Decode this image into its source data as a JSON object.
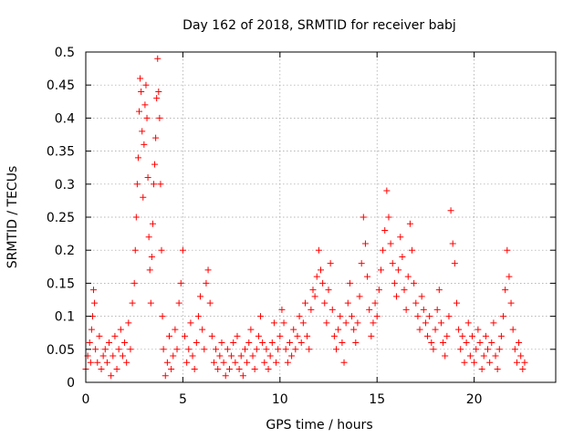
{
  "chart_data": {
    "type": "scatter",
    "title": "Day 162 of 2018, SRMTID for receiver babj",
    "xlabel": "GPS time / hours",
    "ylabel": "SRMTID / TECUs",
    "xlim": [
      0,
      24.2
    ],
    "ylim": [
      0,
      0.5
    ],
    "xticks": [
      0,
      5,
      10,
      15,
      20
    ],
    "xtick_labels": [
      "0",
      "5",
      "10",
      "15",
      "20"
    ],
    "yticks": [
      0,
      0.05,
      0.1,
      0.15,
      0.2,
      0.25,
      0.3,
      0.35,
      0.4,
      0.45,
      0.5
    ],
    "ytick_labels": [
      "0",
      "0.05",
      "0.1",
      "0.15",
      "0.2",
      "0.25",
      "0.3",
      "0.35",
      "0.4",
      "0.45",
      "0.5"
    ],
    "grid": true,
    "marker": "+",
    "marker_color": "#ff0000",
    "series": [
      {
        "name": "SRMTID",
        "points": [
          [
            0.0,
            0.02
          ],
          [
            0.1,
            0.04
          ],
          [
            0.2,
            0.06
          ],
          [
            0.25,
            0.03
          ],
          [
            0.3,
            0.08
          ],
          [
            0.35,
            0.1
          ],
          [
            0.4,
            0.14
          ],
          [
            0.45,
            0.12
          ],
          [
            0.5,
            0.05
          ],
          [
            0.6,
            0.03
          ],
          [
            0.7,
            0.07
          ],
          [
            0.8,
            0.02
          ],
          [
            0.9,
            0.04
          ],
          [
            1.0,
            0.05
          ],
          [
            1.1,
            0.03
          ],
          [
            1.2,
            0.06
          ],
          [
            1.3,
            0.01
          ],
          [
            1.4,
            0.04
          ],
          [
            1.5,
            0.07
          ],
          [
            1.6,
            0.02
          ],
          [
            1.7,
            0.05
          ],
          [
            1.8,
            0.08
          ],
          [
            1.9,
            0.04
          ],
          [
            2.0,
            0.06
          ],
          [
            2.1,
            0.03
          ],
          [
            2.2,
            0.09
          ],
          [
            2.3,
            0.05
          ],
          [
            2.4,
            0.12
          ],
          [
            2.5,
            0.15
          ],
          [
            2.55,
            0.2
          ],
          [
            2.6,
            0.25
          ],
          [
            2.65,
            0.3
          ],
          [
            2.7,
            0.34
          ],
          [
            2.75,
            0.41
          ],
          [
            2.8,
            0.46
          ],
          [
            2.85,
            0.44
          ],
          [
            2.9,
            0.38
          ],
          [
            2.95,
            0.28
          ],
          [
            3.0,
            0.36
          ],
          [
            3.05,
            0.42
          ],
          [
            3.1,
            0.45
          ],
          [
            3.15,
            0.4
          ],
          [
            3.2,
            0.31
          ],
          [
            3.25,
            0.22
          ],
          [
            3.3,
            0.17
          ],
          [
            3.35,
            0.12
          ],
          [
            3.4,
            0.19
          ],
          [
            3.45,
            0.24
          ],
          [
            3.5,
            0.3
          ],
          [
            3.55,
            0.33
          ],
          [
            3.6,
            0.37
          ],
          [
            3.65,
            0.43
          ],
          [
            3.7,
            0.49
          ],
          [
            3.75,
            0.44
          ],
          [
            3.8,
            0.4
          ],
          [
            3.85,
            0.3
          ],
          [
            3.9,
            0.2
          ],
          [
            3.95,
            0.1
          ],
          [
            4.0,
            0.05
          ],
          [
            4.1,
            0.01
          ],
          [
            4.2,
            0.03
          ],
          [
            4.3,
            0.07
          ],
          [
            4.4,
            0.02
          ],
          [
            4.5,
            0.04
          ],
          [
            4.6,
            0.08
          ],
          [
            4.7,
            0.05
          ],
          [
            4.8,
            0.12
          ],
          [
            4.9,
            0.15
          ],
          [
            5.0,
            0.2
          ],
          [
            5.1,
            0.07
          ],
          [
            5.2,
            0.03
          ],
          [
            5.3,
            0.05
          ],
          [
            5.4,
            0.09
          ],
          [
            5.5,
            0.04
          ],
          [
            5.6,
            0.02
          ],
          [
            5.7,
            0.06
          ],
          [
            5.8,
            0.1
          ],
          [
            5.9,
            0.13
          ],
          [
            6.0,
            0.08
          ],
          [
            6.1,
            0.05
          ],
          [
            6.2,
            0.15
          ],
          [
            6.3,
            0.17
          ],
          [
            6.4,
            0.12
          ],
          [
            6.5,
            0.07
          ],
          [
            6.6,
            0.03
          ],
          [
            6.7,
            0.05
          ],
          [
            6.8,
            0.02
          ],
          [
            6.9,
            0.04
          ],
          [
            7.0,
            0.06
          ],
          [
            7.1,
            0.03
          ],
          [
            7.2,
            0.01
          ],
          [
            7.3,
            0.05
          ],
          [
            7.4,
            0.02
          ],
          [
            7.5,
            0.04
          ],
          [
            7.6,
            0.06
          ],
          [
            7.7,
            0.03
          ],
          [
            7.8,
            0.07
          ],
          [
            7.9,
            0.02
          ],
          [
            8.0,
            0.04
          ],
          [
            8.1,
            0.01
          ],
          [
            8.2,
            0.05
          ],
          [
            8.3,
            0.03
          ],
          [
            8.4,
            0.06
          ],
          [
            8.5,
            0.08
          ],
          [
            8.6,
            0.04
          ],
          [
            8.7,
            0.02
          ],
          [
            8.8,
            0.05
          ],
          [
            8.9,
            0.07
          ],
          [
            9.0,
            0.1
          ],
          [
            9.1,
            0.06
          ],
          [
            9.2,
            0.03
          ],
          [
            9.3,
            0.05
          ],
          [
            9.4,
            0.02
          ],
          [
            9.5,
            0.04
          ],
          [
            9.6,
            0.06
          ],
          [
            9.7,
            0.09
          ],
          [
            9.8,
            0.03
          ],
          [
            9.9,
            0.05
          ],
          [
            10.0,
            0.07
          ],
          [
            10.1,
            0.11
          ],
          [
            10.2,
            0.09
          ],
          [
            10.3,
            0.05
          ],
          [
            10.4,
            0.03
          ],
          [
            10.5,
            0.06
          ],
          [
            10.6,
            0.04
          ],
          [
            10.7,
            0.08
          ],
          [
            10.8,
            0.05
          ],
          [
            10.9,
            0.07
          ],
          [
            11.0,
            0.1
          ],
          [
            11.1,
            0.06
          ],
          [
            11.2,
            0.09
          ],
          [
            11.3,
            0.12
          ],
          [
            11.4,
            0.07
          ],
          [
            11.5,
            0.05
          ],
          [
            11.6,
            0.11
          ],
          [
            11.7,
            0.14
          ],
          [
            11.8,
            0.13
          ],
          [
            11.9,
            0.16
          ],
          [
            12.0,
            0.2
          ],
          [
            12.1,
            0.17
          ],
          [
            12.2,
            0.15
          ],
          [
            12.3,
            0.12
          ],
          [
            12.4,
            0.09
          ],
          [
            12.5,
            0.14
          ],
          [
            12.6,
            0.18
          ],
          [
            12.7,
            0.11
          ],
          [
            12.8,
            0.07
          ],
          [
            12.9,
            0.05
          ],
          [
            13.0,
            0.08
          ],
          [
            13.1,
            0.1
          ],
          [
            13.2,
            0.06
          ],
          [
            13.3,
            0.03
          ],
          [
            13.4,
            0.09
          ],
          [
            13.5,
            0.12
          ],
          [
            13.6,
            0.15
          ],
          [
            13.7,
            0.1
          ],
          [
            13.8,
            0.08
          ],
          [
            13.9,
            0.06
          ],
          [
            14.0,
            0.09
          ],
          [
            14.1,
            0.13
          ],
          [
            14.2,
            0.18
          ],
          [
            14.3,
            0.25
          ],
          [
            14.4,
            0.21
          ],
          [
            14.5,
            0.16
          ],
          [
            14.6,
            0.11
          ],
          [
            14.7,
            0.07
          ],
          [
            14.8,
            0.09
          ],
          [
            14.9,
            0.12
          ],
          [
            15.0,
            0.1
          ],
          [
            15.1,
            0.14
          ],
          [
            15.2,
            0.17
          ],
          [
            15.3,
            0.2
          ],
          [
            15.4,
            0.23
          ],
          [
            15.5,
            0.29
          ],
          [
            15.6,
            0.25
          ],
          [
            15.7,
            0.21
          ],
          [
            15.8,
            0.18
          ],
          [
            15.9,
            0.15
          ],
          [
            16.0,
            0.13
          ],
          [
            16.1,
            0.17
          ],
          [
            16.2,
            0.22
          ],
          [
            16.3,
            0.19
          ],
          [
            16.4,
            0.14
          ],
          [
            16.5,
            0.11
          ],
          [
            16.6,
            0.16
          ],
          [
            16.7,
            0.24
          ],
          [
            16.8,
            0.2
          ],
          [
            16.9,
            0.15
          ],
          [
            17.0,
            0.12
          ],
          [
            17.1,
            0.1
          ],
          [
            17.2,
            0.08
          ],
          [
            17.3,
            0.13
          ],
          [
            17.4,
            0.11
          ],
          [
            17.5,
            0.09
          ],
          [
            17.6,
            0.07
          ],
          [
            17.7,
            0.1
          ],
          [
            17.8,
            0.06
          ],
          [
            17.9,
            0.05
          ],
          [
            18.0,
            0.08
          ],
          [
            18.1,
            0.11
          ],
          [
            18.2,
            0.14
          ],
          [
            18.3,
            0.09
          ],
          [
            18.4,
            0.06
          ],
          [
            18.5,
            0.04
          ],
          [
            18.6,
            0.07
          ],
          [
            18.7,
            0.1
          ],
          [
            18.8,
            0.26
          ],
          [
            18.9,
            0.21
          ],
          [
            19.0,
            0.18
          ],
          [
            19.1,
            0.12
          ],
          [
            19.2,
            0.08
          ],
          [
            19.3,
            0.05
          ],
          [
            19.4,
            0.07
          ],
          [
            19.5,
            0.03
          ],
          [
            19.6,
            0.06
          ],
          [
            19.7,
            0.09
          ],
          [
            19.8,
            0.04
          ],
          [
            19.9,
            0.07
          ],
          [
            20.0,
            0.03
          ],
          [
            20.1,
            0.05
          ],
          [
            20.2,
            0.08
          ],
          [
            20.3,
            0.06
          ],
          [
            20.4,
            0.02
          ],
          [
            20.5,
            0.04
          ],
          [
            20.6,
            0.07
          ],
          [
            20.7,
            0.05
          ],
          [
            20.8,
            0.03
          ],
          [
            20.9,
            0.06
          ],
          [
            21.0,
            0.09
          ],
          [
            21.1,
            0.04
          ],
          [
            21.2,
            0.02
          ],
          [
            21.3,
            0.05
          ],
          [
            21.4,
            0.07
          ],
          [
            21.5,
            0.1
          ],
          [
            21.6,
            0.14
          ],
          [
            21.7,
            0.2
          ],
          [
            21.8,
            0.16
          ],
          [
            21.9,
            0.12
          ],
          [
            22.0,
            0.08
          ],
          [
            22.1,
            0.05
          ],
          [
            22.2,
            0.03
          ],
          [
            22.3,
            0.06
          ],
          [
            22.4,
            0.04
          ],
          [
            22.5,
            0.02
          ],
          [
            22.6,
            0.03
          ]
        ]
      }
    ]
  }
}
